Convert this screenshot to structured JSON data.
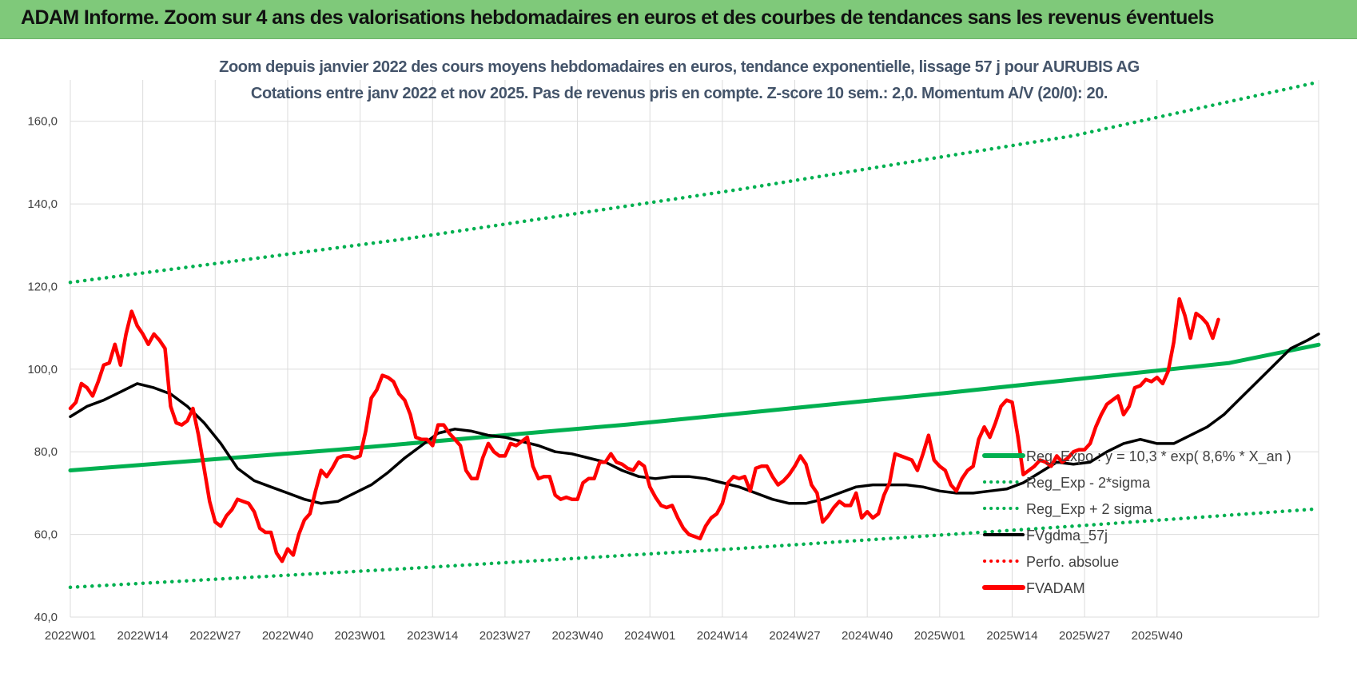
{
  "banner": {
    "title": "ADAM Informe. Zoom sur 4 ans des valorisations hebdomadaires en euros et des courbes de tendances sans les revenus éventuels",
    "color": "#7fc97a"
  },
  "chart_data": {
    "type": "line",
    "title": "Zoom depuis janvier 2022 des cours moyens hebdomadaires en euros, tendance exponentielle, lissage 57 j pour AURUBIS AG",
    "subtitle": "Cotations entre janv 2022 et nov 2025. Pas de revenus pris en compte. Z-score 10 sem.: 2,0. Momentum A/V (20/0): 20.",
    "xlabel": "",
    "ylabel": "",
    "ylim": [
      40,
      170
    ],
    "yticks": [
      "40,0",
      "60,0",
      "80,0",
      "100,0",
      "120,0",
      "140,0",
      "160,0"
    ],
    "xticks": [
      "2022W01",
      "2022W14",
      "2022W27",
      "2022W40",
      "2023W01",
      "2023W14",
      "2023W27",
      "2023W40",
      "2024W01",
      "2024W14",
      "2024W27",
      "2024W40",
      "2025W01",
      "2025W14",
      "2025W27",
      "2025W40"
    ],
    "grid": true,
    "legend_position": "bottom-right",
    "series": [
      {
        "name": "Reg_Expo : y = 10,3 * exp( 8,6% *  X_an )",
        "style": "solid",
        "color": "#00b050",
        "points": [
          [
            0,
            75.5
          ],
          [
            48,
            80.5
          ],
          [
            100,
            86.6
          ],
          [
            157,
            94.2
          ],
          [
            208,
            101.5
          ],
          [
            224,
            105.9
          ]
        ]
      },
      {
        "name": "Reg_Exp - 2*sigma",
        "style": "dotted",
        "color": "#00b050",
        "points": [
          [
            0,
            47.2
          ],
          [
            60,
            51.7
          ],
          [
            120,
            56.6
          ],
          [
            180,
            62.0
          ],
          [
            224,
            66.2
          ]
        ]
      },
      {
        "name": "Reg_Exp + 2 sigma",
        "style": "dotted",
        "color": "#00b050",
        "points": [
          [
            0,
            121.0
          ],
          [
            60,
            131.5
          ],
          [
            120,
            143.5
          ],
          [
            180,
            156.5
          ],
          [
            224,
            169.5
          ]
        ]
      },
      {
        "name": "FVgdma_57j",
        "style": "solid",
        "color": "#000000",
        "points": [
          [
            0,
            88.5
          ],
          [
            3,
            91
          ],
          [
            6,
            92.5
          ],
          [
            9,
            94.5
          ],
          [
            12,
            96.5
          ],
          [
            15,
            95.5
          ],
          [
            18,
            94
          ],
          [
            21,
            91
          ],
          [
            24,
            87
          ],
          [
            27,
            82
          ],
          [
            30,
            76
          ],
          [
            33,
            73
          ],
          [
            36,
            71.5
          ],
          [
            39,
            70
          ],
          [
            42,
            68.5
          ],
          [
            45,
            67.5
          ],
          [
            48,
            68
          ],
          [
            51,
            70
          ],
          [
            54,
            72
          ],
          [
            57,
            75
          ],
          [
            60,
            78.5
          ],
          [
            63,
            81.5
          ],
          [
            66,
            84.5
          ],
          [
            69,
            85.5
          ],
          [
            72,
            85
          ],
          [
            75,
            84
          ],
          [
            78,
            83.5
          ],
          [
            81,
            82.5
          ],
          [
            84,
            81.5
          ],
          [
            87,
            80
          ],
          [
            90,
            79.5
          ],
          [
            93,
            78.5
          ],
          [
            96,
            77.5
          ],
          [
            99,
            75.5
          ],
          [
            102,
            74
          ],
          [
            105,
            73.5
          ],
          [
            108,
            74
          ],
          [
            111,
            74
          ],
          [
            114,
            73.5
          ],
          [
            117,
            72.5
          ],
          [
            120,
            71.5
          ],
          [
            123,
            70
          ],
          [
            126,
            68.5
          ],
          [
            129,
            67.5
          ],
          [
            132,
            67.5
          ],
          [
            135,
            68.5
          ],
          [
            138,
            70
          ],
          [
            141,
            71.5
          ],
          [
            144,
            72
          ],
          [
            147,
            72
          ],
          [
            150,
            72
          ],
          [
            153,
            71.5
          ],
          [
            156,
            70.5
          ],
          [
            159,
            70
          ],
          [
            162,
            70
          ],
          [
            165,
            70.5
          ],
          [
            168,
            71
          ],
          [
            171,
            72.5
          ],
          [
            174,
            75
          ],
          [
            177,
            77.5
          ],
          [
            180,
            77
          ],
          [
            183,
            77.5
          ],
          [
            186,
            80
          ],
          [
            189,
            82
          ],
          [
            192,
            83
          ],
          [
            195,
            82
          ],
          [
            198,
            82
          ],
          [
            201,
            84
          ],
          [
            204,
            86
          ],
          [
            207,
            89
          ],
          [
            210,
            93
          ],
          [
            213,
            97
          ],
          [
            216,
            101
          ],
          [
            219,
            105
          ],
          [
            222,
            107
          ],
          [
            224,
            108.5
          ]
        ]
      },
      {
        "name": "Perfo. absolue",
        "style": "dotted",
        "color": "#ff0000",
        "points": []
      },
      {
        "name": "FVADAM",
        "style": "solid",
        "color": "#ff0000",
        "points": [
          [
            0,
            90.5
          ],
          [
            1,
            92
          ],
          [
            2,
            96.5
          ],
          [
            3,
            95.5
          ],
          [
            4,
            93.5
          ],
          [
            5,
            97
          ],
          [
            6,
            101
          ],
          [
            7,
            101.5
          ],
          [
            8,
            106
          ],
          [
            9,
            101
          ],
          [
            10,
            108.5
          ],
          [
            11,
            114
          ],
          [
            12,
            110.5
          ],
          [
            13,
            108.5
          ],
          [
            14,
            106
          ],
          [
            15,
            108.5
          ],
          [
            16,
            107
          ],
          [
            17,
            105
          ],
          [
            18,
            91
          ],
          [
            19,
            87
          ],
          [
            20,
            86.5
          ],
          [
            21,
            87.5
          ],
          [
            22,
            90.5
          ],
          [
            23,
            84
          ],
          [
            24,
            76
          ],
          [
            25,
            68
          ],
          [
            26,
            63
          ],
          [
            27,
            62
          ],
          [
            28,
            64.5
          ],
          [
            29,
            66
          ],
          [
            30,
            68.5
          ],
          [
            31,
            68
          ],
          [
            32,
            67.5
          ],
          [
            33,
            65.5
          ],
          [
            34,
            61.5
          ],
          [
            35,
            60.5
          ],
          [
            36,
            60.5
          ],
          [
            37,
            55.5
          ],
          [
            38,
            53.5
          ],
          [
            39,
            56.5
          ],
          [
            40,
            55
          ],
          [
            41,
            60
          ],
          [
            42,
            63.5
          ],
          [
            43,
            65
          ],
          [
            44,
            70.5
          ],
          [
            45,
            75.5
          ],
          [
            46,
            74
          ],
          [
            47,
            76
          ],
          [
            48,
            78.5
          ],
          [
            49,
            79
          ],
          [
            50,
            79
          ],
          [
            51,
            78.5
          ],
          [
            52,
            79
          ],
          [
            53,
            85
          ],
          [
            54,
            93
          ],
          [
            55,
            95
          ],
          [
            56,
            98.5
          ],
          [
            57,
            98
          ],
          [
            58,
            97
          ],
          [
            59,
            94
          ],
          [
            60,
            92.5
          ],
          [
            61,
            89
          ],
          [
            62,
            83.5
          ],
          [
            63,
            83
          ],
          [
            64,
            83
          ],
          [
            65,
            81.5
          ],
          [
            66,
            86.5
          ],
          [
            67,
            86.5
          ],
          [
            68,
            84.5
          ],
          [
            69,
            83
          ],
          [
            70,
            81.5
          ],
          [
            71,
            75.5
          ],
          [
            72,
            73.5
          ],
          [
            73,
            73.5
          ],
          [
            74,
            78.5
          ],
          [
            75,
            82
          ],
          [
            76,
            80
          ],
          [
            77,
            79
          ],
          [
            78,
            79
          ],
          [
            79,
            82
          ],
          [
            80,
            81.5
          ],
          [
            81,
            82.5
          ],
          [
            82,
            83.5
          ],
          [
            83,
            76.5
          ],
          [
            84,
            73.5
          ],
          [
            85,
            74
          ],
          [
            86,
            74
          ],
          [
            87,
            69.5
          ],
          [
            88,
            68.5
          ],
          [
            89,
            69
          ],
          [
            90,
            68.5
          ],
          [
            91,
            68.5
          ],
          [
            92,
            72.5
          ],
          [
            93,
            73.5
          ],
          [
            94,
            73.5
          ],
          [
            95,
            77.5
          ],
          [
            96,
            77.5
          ],
          [
            97,
            79.5
          ],
          [
            98,
            77.5
          ],
          [
            99,
            77
          ],
          [
            100,
            76
          ],
          [
            101,
            75.5
          ],
          [
            102,
            77.5
          ],
          [
            103,
            76.5
          ],
          [
            104,
            71.5
          ],
          [
            105,
            69
          ],
          [
            106,
            67
          ],
          [
            107,
            66.5
          ],
          [
            108,
            67
          ],
          [
            109,
            64
          ],
          [
            110,
            61.5
          ],
          [
            111,
            60
          ],
          [
            112,
            59.5
          ],
          [
            113,
            59
          ],
          [
            114,
            62
          ],
          [
            115,
            64
          ],
          [
            116,
            65
          ],
          [
            117,
            67.5
          ],
          [
            118,
            72.5
          ],
          [
            119,
            74
          ],
          [
            120,
            73.5
          ],
          [
            121,
            74
          ],
          [
            122,
            70.5
          ],
          [
            123,
            76
          ],
          [
            124,
            76.5
          ],
          [
            125,
            76.5
          ],
          [
            126,
            74
          ],
          [
            127,
            72
          ],
          [
            128,
            73
          ],
          [
            129,
            74.5
          ],
          [
            130,
            76.5
          ],
          [
            131,
            79
          ],
          [
            132,
            77
          ],
          [
            133,
            72
          ],
          [
            134,
            70
          ],
          [
            135,
            63
          ],
          [
            136,
            64.5
          ],
          [
            137,
            66.5
          ],
          [
            138,
            68
          ],
          [
            139,
            67
          ],
          [
            140,
            67
          ],
          [
            141,
            70
          ],
          [
            142,
            64
          ],
          [
            143,
            65.5
          ],
          [
            144,
            64
          ],
          [
            145,
            65
          ],
          [
            146,
            69.5
          ],
          [
            147,
            72.5
          ],
          [
            148,
            79.5
          ],
          [
            149,
            79
          ],
          [
            150,
            78.5
          ],
          [
            151,
            78
          ],
          [
            152,
            75.5
          ],
          [
            153,
            79.5
          ],
          [
            154,
            84
          ],
          [
            155,
            78
          ],
          [
            156,
            76.5
          ],
          [
            157,
            75.5
          ],
          [
            158,
            72
          ],
          [
            159,
            70.5
          ],
          [
            160,
            73.5
          ],
          [
            161,
            75.5
          ],
          [
            162,
            76.5
          ],
          [
            163,
            83
          ],
          [
            164,
            86
          ],
          [
            165,
            83.5
          ],
          [
            166,
            87
          ],
          [
            167,
            91
          ],
          [
            168,
            92.5
          ],
          [
            169,
            92
          ],
          [
            170,
            84
          ],
          [
            171,
            74.5
          ],
          [
            172,
            75.5
          ],
          [
            173,
            76.5
          ],
          [
            174,
            78
          ],
          [
            175,
            77.5
          ],
          [
            176,
            76.5
          ],
          [
            177,
            79
          ],
          [
            178,
            77.5
          ],
          [
            179,
            78.5
          ],
          [
            180,
            80
          ],
          [
            181,
            80.5
          ],
          [
            182,
            80.5
          ],
          [
            183,
            82
          ],
          [
            184,
            86
          ],
          [
            185,
            89
          ],
          [
            186,
            91.5
          ],
          [
            187,
            92.5
          ],
          [
            188,
            93.5
          ],
          [
            189,
            89
          ],
          [
            190,
            91
          ],
          [
            191,
            95.5
          ],
          [
            192,
            96
          ],
          [
            193,
            97.5
          ],
          [
            194,
            97
          ],
          [
            195,
            98
          ],
          [
            196,
            96.5
          ],
          [
            197,
            99.5
          ],
          [
            198,
            106.5
          ],
          [
            199,
            117
          ],
          [
            200,
            113
          ],
          [
            201,
            107.5
          ],
          [
            202,
            113.5
          ],
          [
            203,
            112.5
          ],
          [
            204,
            111
          ],
          [
            205,
            107.5
          ],
          [
            206,
            112
          ]
        ]
      }
    ]
  }
}
